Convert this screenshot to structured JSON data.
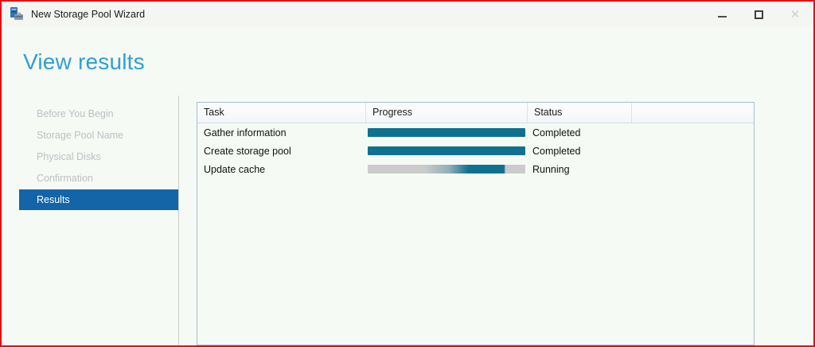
{
  "window": {
    "title": "New Storage Pool Wizard",
    "controls": {
      "minimize": "minimize",
      "maximize": "maximize",
      "close": "✕"
    }
  },
  "page": {
    "heading": "View results"
  },
  "sidebar": {
    "items": [
      {
        "label": "Before You Begin",
        "state": "disabled"
      },
      {
        "label": "Storage Pool Name",
        "state": "disabled"
      },
      {
        "label": "Physical Disks",
        "state": "disabled"
      },
      {
        "label": "Confirmation",
        "state": "disabled"
      },
      {
        "label": "Results",
        "state": "selected"
      }
    ]
  },
  "results_table": {
    "columns": {
      "task": "Task",
      "progress": "Progress",
      "status": "Status"
    },
    "rows": [
      {
        "task": "Gather information",
        "progress_percent": 100,
        "indeterminate": false,
        "status": "Completed"
      },
      {
        "task": "Create storage pool",
        "progress_percent": 100,
        "indeterminate": false,
        "status": "Completed"
      },
      {
        "task": "Update cache",
        "progress_percent": 87,
        "indeterminate": true,
        "status": "Running"
      }
    ]
  },
  "colors": {
    "selection_blue": "#1464a8",
    "heading_blue": "#2da0d3",
    "progress_teal": "#0f7190",
    "progress_track_gray": "#cbcbcb",
    "window_border_red": "#ea0b0b"
  }
}
